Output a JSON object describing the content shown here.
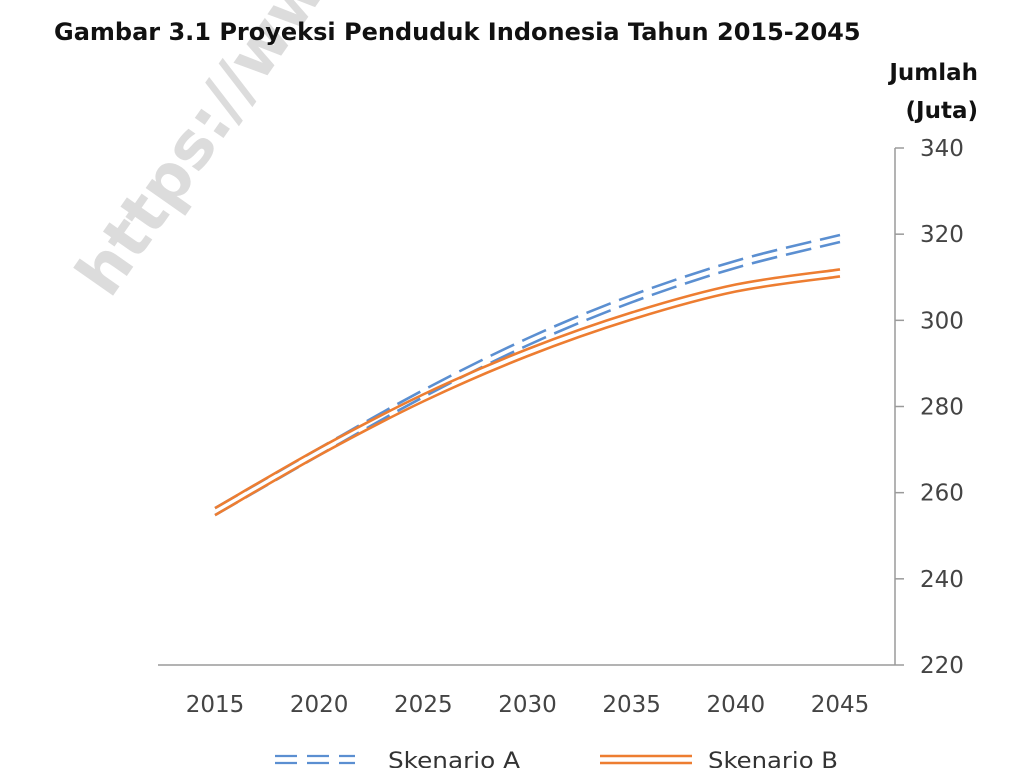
{
  "watermark": "https://www.",
  "chart_data": {
    "type": "line",
    "title": "Gambar 3.1 Proyeksi Penduduk Indonesia Tahun 2015-2045",
    "ylabel_line1": "Jumlah",
    "ylabel_line2": "(Juta)",
    "x": [
      2015,
      2020,
      2025,
      2030,
      2035,
      2040,
      2045
    ],
    "x_tick_labels": [
      "2015",
      "2020",
      "2025",
      "2030",
      "2035",
      "2040",
      "2045"
    ],
    "ylim": [
      220,
      340
    ],
    "y_ticks": [
      220,
      240,
      260,
      280,
      300,
      320,
      340
    ],
    "y_axis_side": "right",
    "grid": false,
    "legend_position": "bottom",
    "series": [
      {
        "name": "Skenario A",
        "style": "dashed-double",
        "color": "#5b8fd1",
        "values": [
          255.6,
          269.5,
          283.0,
          295.0,
          305.0,
          313.0,
          319.0
        ]
      },
      {
        "name": "Skenario B",
        "style": "solid-double",
        "color": "#ed7d31",
        "values": [
          255.6,
          269.5,
          282.0,
          292.5,
          301.0,
          307.5,
          311.0
        ]
      }
    ],
    "legend": [
      {
        "marker": "=  = :",
        "label": "Skenario A"
      },
      {
        "marker": "",
        "label": "Skenario B"
      }
    ]
  }
}
